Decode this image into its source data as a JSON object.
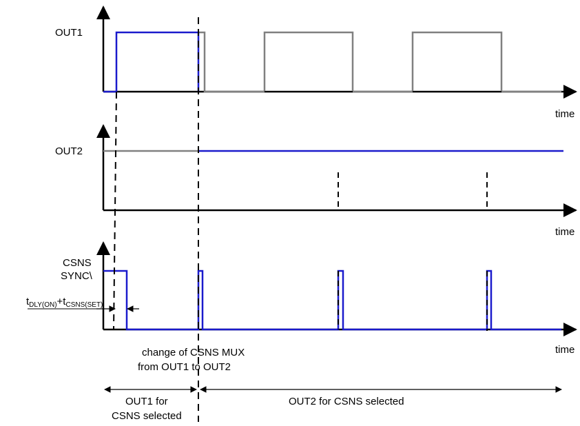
{
  "signals": {
    "out1": "OUT1",
    "out2": "OUT2",
    "csns_line1": "CSNS",
    "csns_line2": "SYNC\\"
  },
  "axes": {
    "time_top": "time",
    "time_mid": "time",
    "time_bottom": "time"
  },
  "timing_label": {
    "t1": "t",
    "t1_sub": "DLY(ON)",
    "plus": "+t",
    "t2_sub": "CSNS(SET)"
  },
  "annotation": {
    "line1": "change of CSNS MUX",
    "line2": "from OUT1 to OUT2"
  },
  "regions": {
    "left_line1": "OUT1 for",
    "left_line2": "CSNS selected",
    "right": "OUT2 for CSNS selected"
  },
  "colors": {
    "active": "#1a1acc",
    "inactive": "#808080",
    "axis": "#000000"
  }
}
